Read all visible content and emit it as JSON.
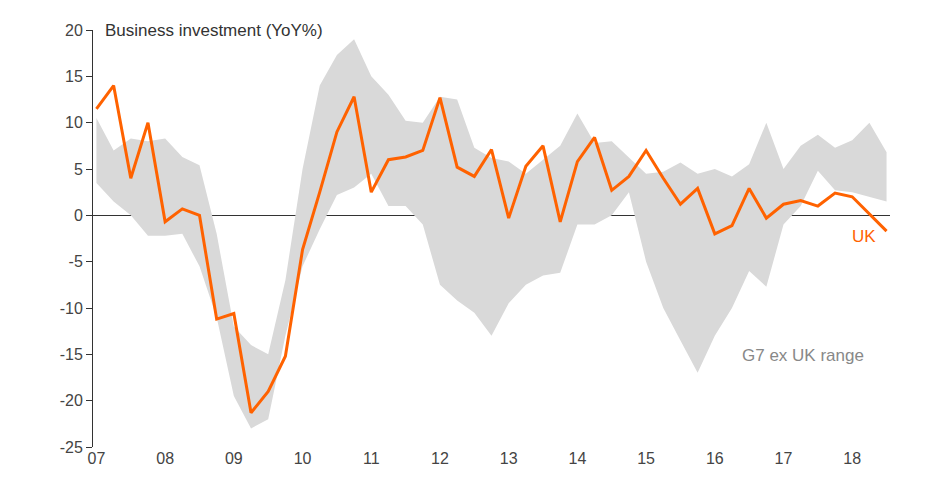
{
  "chart_data": {
    "type": "line",
    "title": "Business investment (YoY%)",
    "categories": [
      "07",
      null,
      null,
      null,
      "08",
      null,
      null,
      null,
      "09",
      null,
      null,
      null,
      "10",
      null,
      null,
      null,
      "11",
      null,
      null,
      null,
      "12",
      null,
      null,
      null,
      "13",
      null,
      null,
      null,
      "14",
      null,
      null,
      null,
      "15",
      null,
      null,
      null,
      "16",
      null,
      null,
      null,
      "17",
      null,
      null,
      null,
      "18",
      null,
      null
    ],
    "series": [
      {
        "name": "G7 ex UK range",
        "type": "range",
        "color": "#d9d9d9",
        "low": [
          3.5,
          1.5,
          0,
          -2.2,
          -2.2,
          -2,
          -5.5,
          -11,
          -19.5,
          -23,
          -22,
          -13,
          -5.5,
          -1.5,
          2.2,
          3,
          4.5,
          1,
          1,
          -1,
          -7.5,
          -9.2,
          -10.5,
          -13,
          -9.5,
          -7.5,
          -6.5,
          -6.2,
          -1,
          -1,
          0,
          2.5,
          -5,
          -10,
          -13.5,
          -17,
          -13,
          -10,
          -6,
          -7.7,
          -1,
          1,
          4.8,
          2.7,
          2.5,
          2,
          1.5
        ],
        "high": [
          10.5,
          7,
          8.3,
          8,
          8.3,
          6.3,
          5.4,
          -2,
          -12,
          -14,
          -15,
          -7,
          5,
          14,
          17.3,
          19,
          15,
          13,
          10.2,
          10,
          12.8,
          12.5,
          7.3,
          6.2,
          5.8,
          4.5,
          6,
          7.5,
          11,
          7.8,
          8,
          6.3,
          4.5,
          4.7,
          5.7,
          4.5,
          5,
          4.2,
          5.5,
          10,
          5,
          7.5,
          8.7,
          7.3,
          8.1,
          10,
          6.8
        ]
      },
      {
        "name": "UK",
        "type": "line",
        "color": "#ff6200",
        "values": [
          11.5,
          14,
          4,
          10,
          -0.7,
          0.7,
          0,
          -11.2,
          -10.6,
          -21.3,
          -19,
          -15.2,
          -3.7,
          2.5,
          9,
          12.8,
          2.5,
          6,
          6.3,
          7,
          12.7,
          5.2,
          4.2,
          7.1,
          -0.3,
          5.3,
          7.5,
          -0.7,
          5.8,
          8.4,
          2.7,
          4.2,
          7,
          4,
          1.2,
          2.9,
          -2,
          -1.1,
          2.9,
          -0.3,
          1.2,
          1.6,
          1,
          2.4,
          2,
          0.2,
          -1.7
        ]
      }
    ],
    "ylim": [
      -25,
      20
    ],
    "yticks": [
      -25,
      -20,
      -15,
      -10,
      -5,
      0,
      5,
      10,
      15,
      20
    ],
    "grid": false,
    "legend": false
  }
}
